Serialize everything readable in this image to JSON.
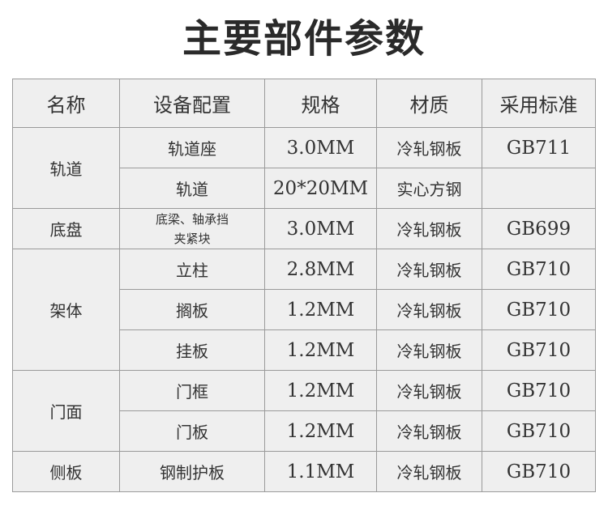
{
  "title": "主要部件参数",
  "headers": [
    "名称",
    "设备配置",
    "规格",
    "材质",
    "采用标准"
  ],
  "groups": [
    {
      "name": "轨道",
      "rows": [
        {
          "item": "轨道座",
          "spec": "3.0MM",
          "material": "冷轧钢板",
          "standard": "GB711"
        },
        {
          "item": "轨道",
          "spec": "20*20MM",
          "material": "实心方钢",
          "standard": ""
        }
      ]
    },
    {
      "name": "底盘",
      "rows": [
        {
          "item": "底梁、轴承挡",
          "item2": "夹紧块",
          "spec": "3.0MM",
          "material": "冷轧钢板",
          "standard": "GB699"
        }
      ]
    },
    {
      "name": "架体",
      "rows": [
        {
          "item": "立柱",
          "spec": "2.8MM",
          "material": "冷轧钢板",
          "standard": "GB710"
        },
        {
          "item": "搁板",
          "spec": "1.2MM",
          "material": "冷轧钢板",
          "standard": "GB710"
        },
        {
          "item": "挂板",
          "spec": "1.2MM",
          "material": "冷轧钢板",
          "standard": "GB710"
        }
      ]
    },
    {
      "name": "门面",
      "rows": [
        {
          "item": "门框",
          "spec": "1.2MM",
          "material": "冷轧钢板",
          "standard": "GB710"
        },
        {
          "item": "门板",
          "spec": "1.2MM",
          "material": "冷轧钢板",
          "standard": "GB710"
        }
      ]
    },
    {
      "name": "侧板",
      "rows": [
        {
          "item": "钢制护板",
          "spec": "1.1MM",
          "material": "冷轧钢板",
          "standard": "GB710"
        }
      ]
    }
  ]
}
